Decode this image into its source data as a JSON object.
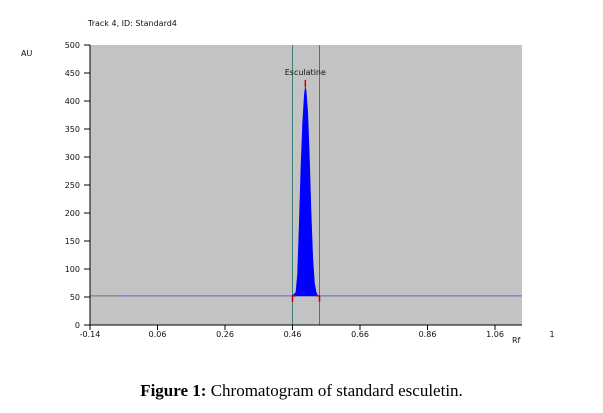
{
  "chart_data": {
    "type": "area",
    "title": "Track 4, ID: Standard4",
    "xlabel": "Rf",
    "ylabel": "AU",
    "xlim": [
      -0.14,
      1.14
    ],
    "ylim": [
      0,
      500
    ],
    "x_ticks": [
      -0.14,
      0.06,
      0.26,
      0.46,
      0.66,
      0.86,
      1.06
    ],
    "x_tick_labels": [
      "-0.14",
      "0.06",
      "0.26",
      "0.46",
      "0.66",
      "0.86",
      "1.06"
    ],
    "x_axis_end_label": "1",
    "y_ticks": [
      0,
      50,
      100,
      150,
      200,
      250,
      300,
      350,
      400,
      450,
      500
    ],
    "y_tick_labels": [
      "0",
      "50",
      "100",
      "150",
      "200",
      "250",
      "300",
      "350",
      "400",
      "450",
      "500"
    ],
    "baseline_au": 52,
    "baseline_range": [
      -0.05,
      1.14
    ],
    "integration_window": [
      0.46,
      0.54
    ],
    "peak_label": "Esculatine",
    "series": [
      {
        "values": [
          [
            0.46,
            52
          ],
          [
            0.47,
            58
          ],
          [
            0.475,
            90
          ],
          [
            0.48,
            180
          ],
          [
            0.485,
            280
          ],
          [
            0.49,
            360
          ],
          [
            0.495,
            410
          ],
          [
            0.498,
            425
          ],
          [
            0.5,
            420
          ],
          [
            0.505,
            380
          ],
          [
            0.51,
            300
          ],
          [
            0.515,
            200
          ],
          [
            0.52,
            120
          ],
          [
            0.525,
            75
          ],
          [
            0.53,
            58
          ],
          [
            0.535,
            52
          ]
        ]
      }
    ],
    "colors": {
      "plot_background": "#c3c3c3",
      "peak_fill": "#0000ff",
      "baseline_line": "#6b7fd0",
      "window_lines": "#3a7f7a",
      "peak_marker": "#d00000"
    }
  },
  "caption": {
    "label": "Figure 1:",
    "text": " Chromatogram of standard esculetin."
  }
}
